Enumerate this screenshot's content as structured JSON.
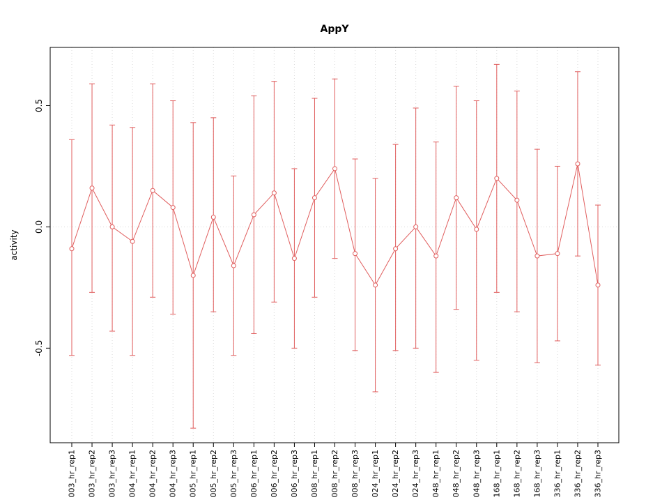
{
  "chart_data": {
    "type": "scatter",
    "subtype": "points-with-error-bars-connected-line",
    "title": "AppY",
    "xlabel": "",
    "ylabel": "activity",
    "ylim": [
      -0.89,
      0.74
    ],
    "yticks": [
      -0.5,
      0.0,
      0.5
    ],
    "grid": {
      "vertical_at_each_category": true,
      "horizontal_at_zero": true,
      "style": "dotted"
    },
    "legend": "none",
    "series_color": "#e05d5d",
    "grid_color": "#d9d9d9",
    "axis_color": "#000000",
    "categories": [
      "003_hr_rep1",
      "003_hr_rep2",
      "003_hr_rep3",
      "004_hr_rep1",
      "004_hr_rep2",
      "004_hr_rep3",
      "005_hr_rep1",
      "005_hr_rep2",
      "005_hr_rep3",
      "006_hr_rep1",
      "006_hr_rep2",
      "006_hr_rep3",
      "008_hr_rep1",
      "008_hr_rep2",
      "008_hr_rep3",
      "024_hr_rep1",
      "024_hr_rep2",
      "024_hr_rep3",
      "048_hr_rep1",
      "048_hr_rep2",
      "048_hr_rep3",
      "168_hr_rep1",
      "168_hr_rep2",
      "168_hr_rep3",
      "336_hr_rep1",
      "336_hr_rep2",
      "336_hr_rep3"
    ],
    "values": [
      -0.09,
      0.16,
      0.0,
      -0.06,
      0.15,
      0.08,
      -0.2,
      0.04,
      -0.16,
      0.05,
      0.14,
      -0.13,
      0.12,
      0.24,
      -0.11,
      -0.24,
      -0.09,
      0.0,
      -0.12,
      0.12,
      -0.01,
      0.2,
      0.11,
      -0.12,
      -0.11,
      0.26,
      -0.24
    ],
    "upper": [
      0.36,
      0.59,
      0.42,
      0.41,
      0.59,
      0.52,
      0.43,
      0.45,
      0.21,
      0.54,
      0.6,
      0.24,
      0.53,
      0.61,
      0.28,
      0.2,
      0.34,
      0.49,
      0.35,
      0.58,
      0.52,
      0.67,
      0.56,
      0.32,
      0.25,
      0.64,
      0.09
    ],
    "lower": [
      -0.53,
      -0.27,
      -0.43,
      -0.53,
      -0.29,
      -0.36,
      -0.83,
      -0.35,
      -0.53,
      -0.44,
      -0.31,
      -0.5,
      -0.29,
      -0.13,
      -0.51,
      -0.68,
      -0.51,
      -0.5,
      -0.6,
      -0.34,
      -0.55,
      -0.27,
      -0.35,
      -0.56,
      -0.47,
      -0.12,
      -0.57
    ]
  }
}
